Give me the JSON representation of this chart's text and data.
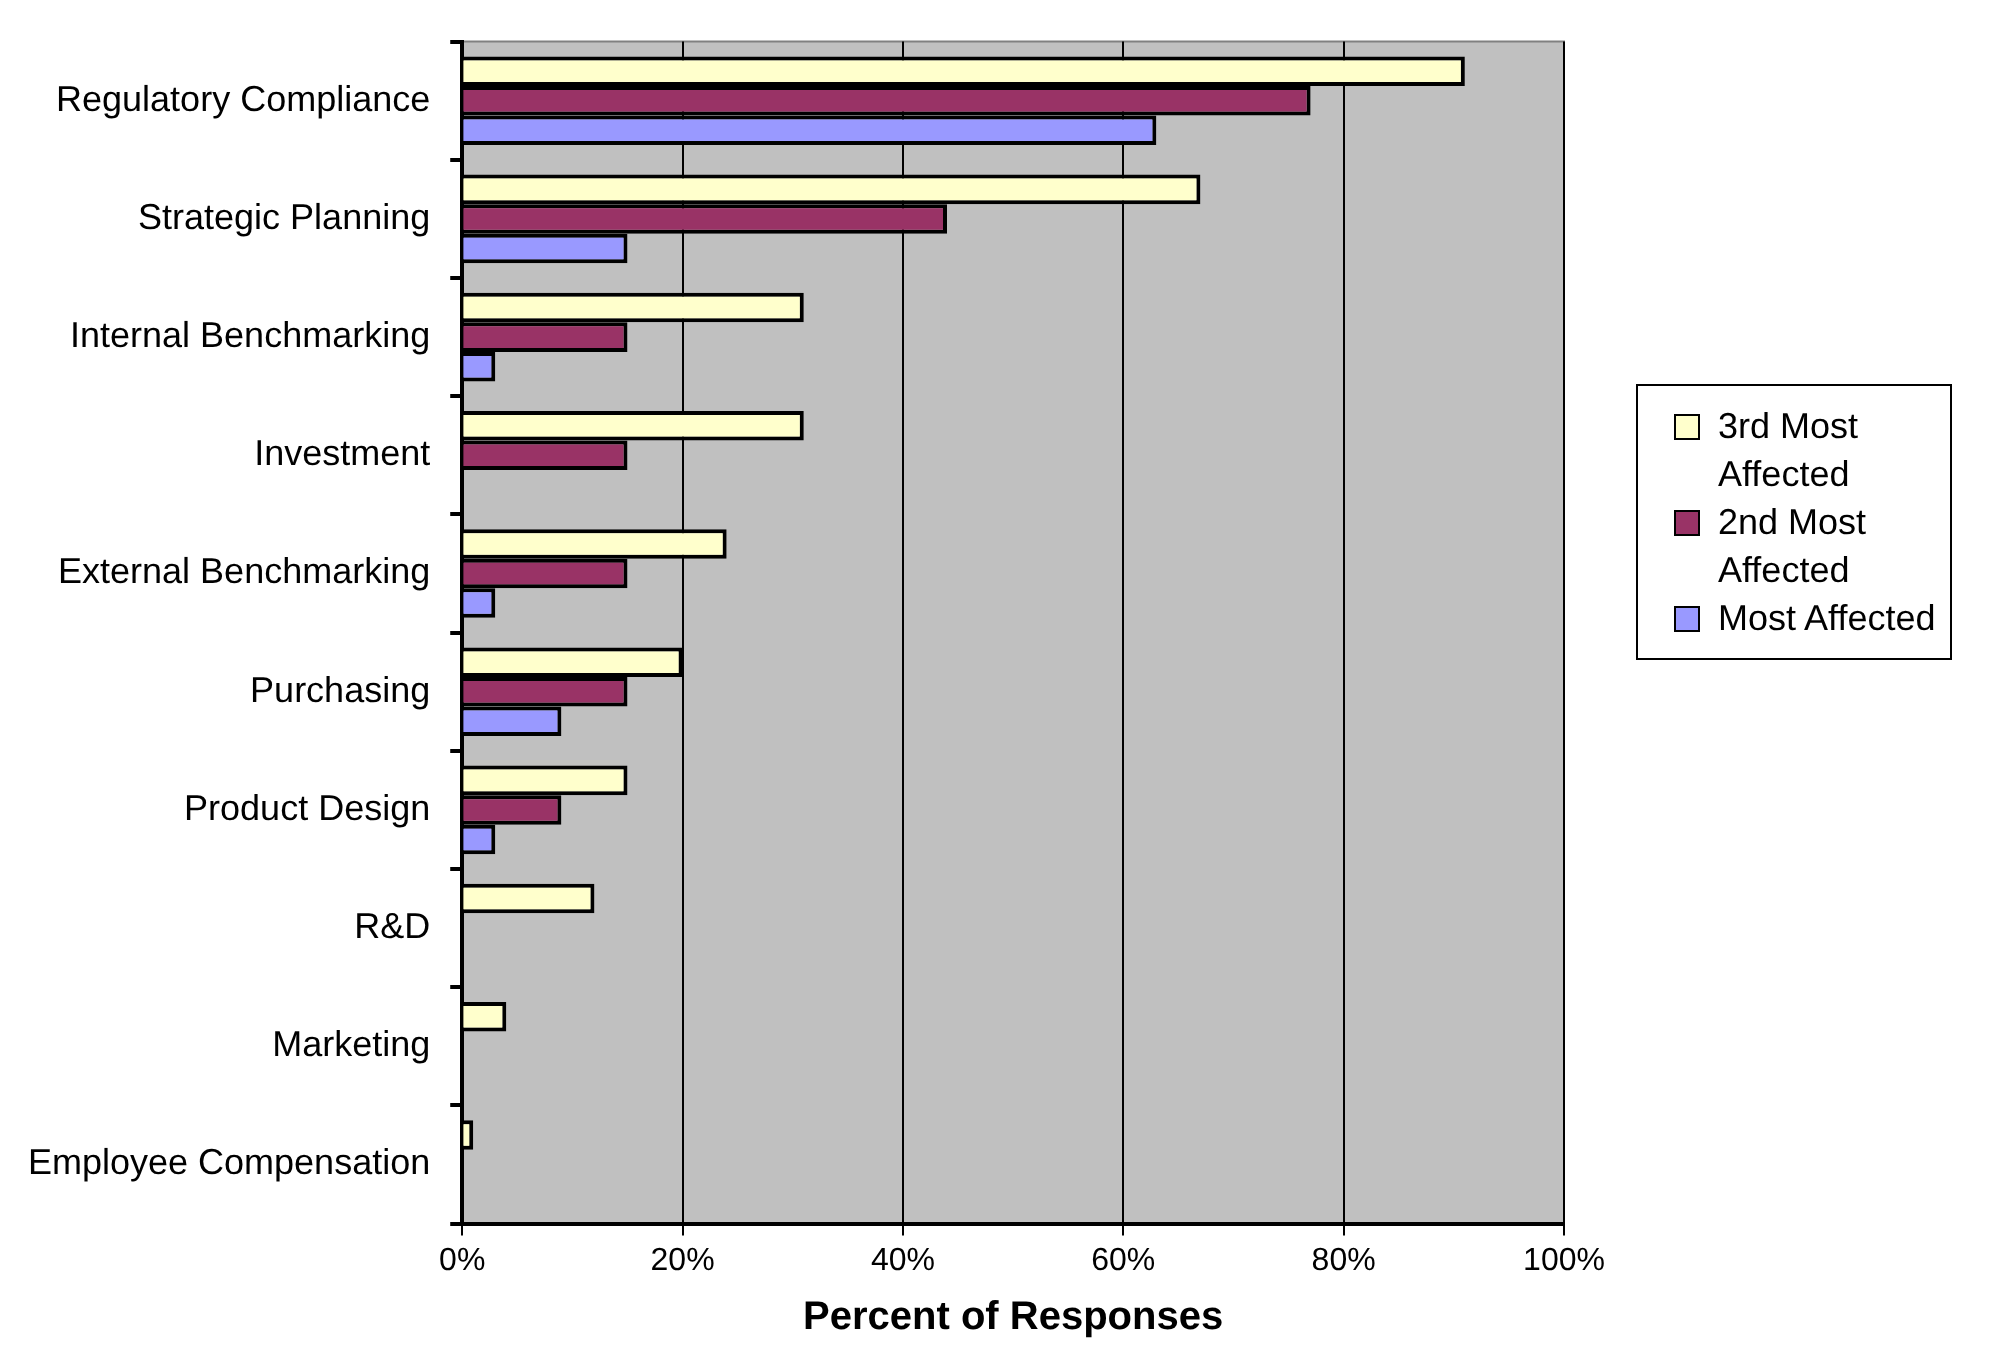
{
  "chart_data": {
    "type": "bar",
    "orientation": "horizontal",
    "xlabel": "Percent of Responses",
    "categories": [
      "Regulatory Compliance",
      "Strategic Planning",
      "Internal Benchmarking",
      "Investment",
      "External Benchmarking",
      "Purchasing",
      "Product Design",
      "R&D",
      "Marketing",
      "Employee Compensation"
    ],
    "series": [
      {
        "name": "3rd Most Affected",
        "color": "#ffffcc",
        "values": [
          91,
          67,
          31,
          31,
          24,
          20,
          15,
          12,
          4,
          1
        ]
      },
      {
        "name": "2nd Most Affected",
        "color": "#993366",
        "values": [
          77,
          44,
          15,
          15,
          15,
          15,
          9,
          null,
          null,
          null
        ]
      },
      {
        "name": "Most Affected",
        "color": "#9999ff",
        "values": [
          63,
          15,
          3,
          null,
          3,
          9,
          3,
          null,
          null,
          null
        ]
      }
    ],
    "xlim": [
      0,
      100
    ],
    "xticks": [
      {
        "value": 0,
        "label": "0%"
      },
      {
        "value": 20,
        "label": "20%"
      },
      {
        "value": 40,
        "label": "40%"
      },
      {
        "value": 60,
        "label": "60%"
      },
      {
        "value": 80,
        "label": "80%"
      },
      {
        "value": 100,
        "label": "100%"
      }
    ],
    "grid": "x",
    "legend": "right"
  }
}
